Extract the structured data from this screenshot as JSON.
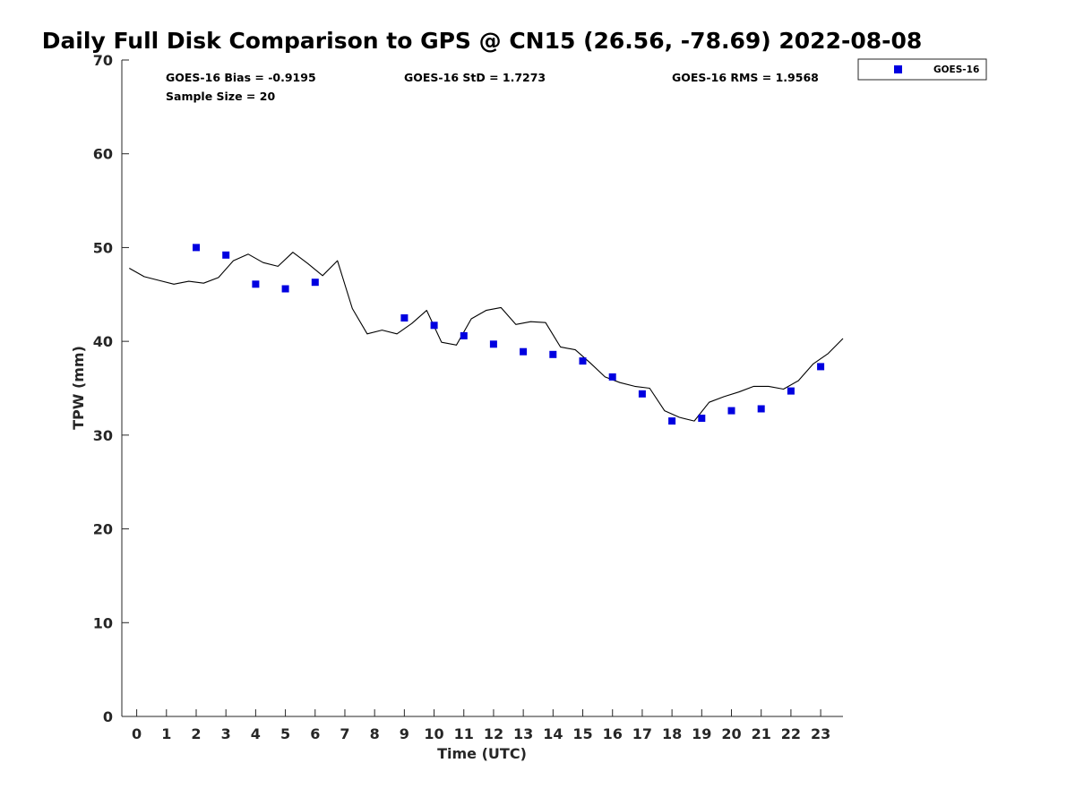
{
  "chart_data": {
    "type": "scatter",
    "title": "Daily Full Disk Comparison to GPS @ CN15 (26.56, -78.69) 2022-08-08",
    "xlabel": "Time (UTC)",
    "ylabel": "TPW (mm)",
    "xlim": [
      -0.5,
      23.75
    ],
    "ylim": [
      0,
      70
    ],
    "x_ticks": [
      "0",
      "1",
      "2",
      "3",
      "4",
      "5",
      "6",
      "7",
      "8",
      "9",
      "10",
      "11",
      "12",
      "13",
      "14",
      "15",
      "16",
      "17",
      "18",
      "19",
      "20",
      "21",
      "22",
      "23"
    ],
    "y_ticks": [
      "0",
      "10",
      "20",
      "30",
      "40",
      "50",
      "60",
      "70"
    ],
    "grid": false,
    "legend": {
      "position": "outside-top-right",
      "entries": [
        "GOES-16"
      ]
    },
    "stats": [
      "GOES-16 Bias = -0.9195",
      "GOES-16 StD = 1.7273",
      "GOES-16 RMS = 1.9568",
      "Sample Size = 20"
    ],
    "series": [
      {
        "name": "GOES-16",
        "kind": "scatter",
        "marker": "square",
        "color": "#0000e0",
        "points": [
          [
            2,
            50.0
          ],
          [
            3,
            49.2
          ],
          [
            4,
            46.1
          ],
          [
            5,
            45.6
          ],
          [
            6,
            46.3
          ],
          [
            9,
            42.5
          ],
          [
            10,
            41.7
          ],
          [
            11,
            40.6
          ],
          [
            12,
            39.7
          ],
          [
            13,
            38.9
          ],
          [
            14,
            38.6
          ],
          [
            15,
            37.9
          ],
          [
            16,
            36.2
          ],
          [
            17,
            34.4
          ],
          [
            18,
            31.5
          ],
          [
            19,
            31.8
          ],
          [
            20,
            32.6
          ],
          [
            21,
            32.8
          ],
          [
            22,
            34.7
          ],
          [
            23,
            37.3
          ]
        ]
      },
      {
        "kind": "line",
        "color": "#000000",
        "points": [
          [
            -0.25,
            47.8
          ],
          [
            0.25,
            46.9
          ],
          [
            0.75,
            46.5
          ],
          [
            1.25,
            46.1
          ],
          [
            1.75,
            46.4
          ],
          [
            2.25,
            46.2
          ],
          [
            2.75,
            46.8
          ],
          [
            3.25,
            48.6
          ],
          [
            3.75,
            49.3
          ],
          [
            4.25,
            48.4
          ],
          [
            4.75,
            48.0
          ],
          [
            5.25,
            49.5
          ],
          [
            5.75,
            48.3
          ],
          [
            6.25,
            47.0
          ],
          [
            6.75,
            48.6
          ],
          [
            7.25,
            43.5
          ],
          [
            7.75,
            40.8
          ],
          [
            8.25,
            41.2
          ],
          [
            8.75,
            40.8
          ],
          [
            9.25,
            41.9
          ],
          [
            9.75,
            43.3
          ],
          [
            10.25,
            39.9
          ],
          [
            10.75,
            39.6
          ],
          [
            11.25,
            42.4
          ],
          [
            11.75,
            43.3
          ],
          [
            12.25,
            43.6
          ],
          [
            12.75,
            41.8
          ],
          [
            13.25,
            42.1
          ],
          [
            13.75,
            42.0
          ],
          [
            14.25,
            39.4
          ],
          [
            14.75,
            39.1
          ],
          [
            15.25,
            37.7
          ],
          [
            15.75,
            36.2
          ],
          [
            16.25,
            35.6
          ],
          [
            16.75,
            35.2
          ],
          [
            17.25,
            35.0
          ],
          [
            17.75,
            32.6
          ],
          [
            18.25,
            31.9
          ],
          [
            18.75,
            31.5
          ],
          [
            19.25,
            33.5
          ],
          [
            19.75,
            34.1
          ],
          [
            20.25,
            34.6
          ],
          [
            20.75,
            35.2
          ],
          [
            21.25,
            35.2
          ],
          [
            21.75,
            34.9
          ],
          [
            22.25,
            35.8
          ],
          [
            22.75,
            37.6
          ],
          [
            23.25,
            38.7
          ],
          [
            23.75,
            40.3
          ]
        ]
      }
    ]
  }
}
